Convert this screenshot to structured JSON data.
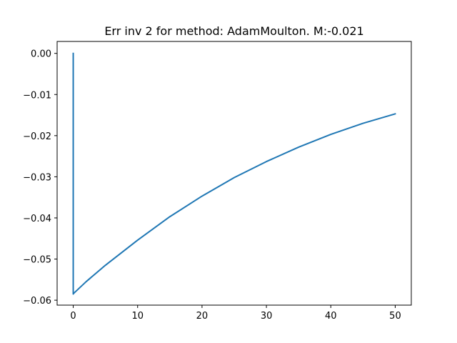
{
  "chart_data": {
    "type": "line",
    "title": "Err inv 2 for method: AdamMoulton. M:-0.021",
    "xlabel": "",
    "ylabel": "",
    "xlim": [
      -2.5,
      52.5
    ],
    "ylim": [
      -0.0612,
      0.0029
    ],
    "grid": false,
    "x_ticks": [
      {
        "value": 0,
        "label": "0"
      },
      {
        "value": 10,
        "label": "10"
      },
      {
        "value": 20,
        "label": "20"
      },
      {
        "value": 30,
        "label": "30"
      },
      {
        "value": 40,
        "label": "40"
      },
      {
        "value": 50,
        "label": "50"
      }
    ],
    "y_ticks": [
      {
        "value": 0.0,
        "label": "0.00"
      },
      {
        "value": -0.01,
        "label": "−0.01"
      },
      {
        "value": -0.02,
        "label": "−0.02"
      },
      {
        "value": -0.03,
        "label": "−0.03"
      },
      {
        "value": -0.04,
        "label": "−0.04"
      },
      {
        "value": -0.05,
        "label": "−0.05"
      },
      {
        "value": -0.06,
        "label": "−0.06"
      }
    ],
    "series": [
      {
        "color": "#1f77b4",
        "x": [
          0,
          0,
          0.1,
          2,
          5,
          10,
          15,
          20,
          25,
          30,
          35,
          40,
          45,
          50
        ],
        "y": [
          0.0,
          -0.0585,
          -0.0583,
          -0.0555,
          -0.0515,
          -0.0454,
          -0.0397,
          -0.0347,
          -0.0302,
          -0.0263,
          -0.0228,
          -0.0197,
          -0.017,
          -0.0147
        ]
      }
    ]
  }
}
